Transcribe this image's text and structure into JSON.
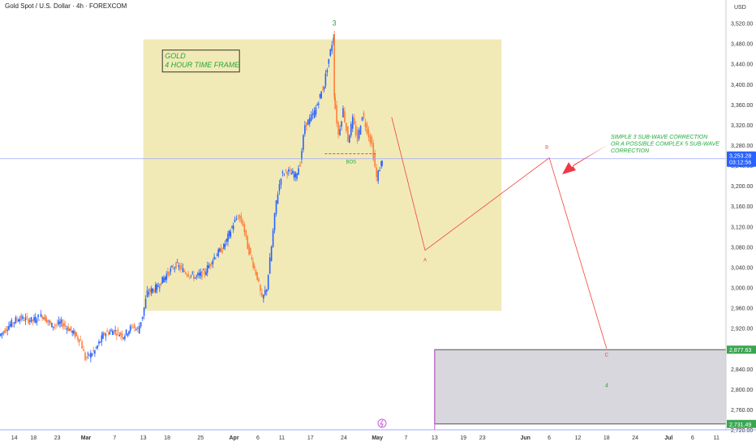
{
  "header": {
    "title": "Gold Spot / U.S. Dollar · 4h · FOREXCOM",
    "currency": "USD"
  },
  "colors": {
    "background": "#ffffff",
    "bull": "#2962ff",
    "bear": "#ff7f3a",
    "zone_fill": "#f1eab7",
    "target_fill": "#d7d7dd",
    "projection": "#f44336",
    "wave_label": "#2ea043",
    "annotation": "#22a83a",
    "arrow": "#f23645",
    "price_tag": "#2962ff",
    "level_tag": "#3aa651",
    "crosshair": "#9fa8ff"
  },
  "chart_data": {
    "type": "candlestick",
    "title": "Gold Spot / U.S. Dollar · 4h · FOREXCOM",
    "xlabel": "",
    "ylabel": "",
    "ylim": [
      2720,
      3540
    ],
    "y_ticks": [
      "3,520.00",
      "3,480.00",
      "3,440.00",
      "3,400.00",
      "3,360.00",
      "3,320.00",
      "3,280.00",
      "3,240.00",
      "3,200.00",
      "3,160.00",
      "3,120.00",
      "3,080.00",
      "3,040.00",
      "3,000.00",
      "2,960.00",
      "2,920.00",
      "2,880.00",
      "2,840.00",
      "2,800.00",
      "2,760.00",
      "2,720.00"
    ],
    "x_ticks": [
      "14",
      "18",
      "23",
      "Mar",
      "7",
      "13",
      "18",
      "25",
      "Apr",
      "6",
      "11",
      "17",
      "24",
      "May",
      "7",
      "13",
      "19",
      "23",
      "Jun",
      "6",
      "12",
      "18",
      "24",
      "Jul",
      "6",
      "11"
    ],
    "x_range": [
      "2025-02-11",
      "2025-07-13"
    ],
    "legend": "none",
    "grid": false,
    "price_path": [
      [
        "2025-02-11",
        2905
      ],
      [
        "2025-02-13",
        2925
      ],
      [
        "2025-02-15",
        2940
      ],
      [
        "2025-02-18",
        2935
      ],
      [
        "2025-02-20",
        2945
      ],
      [
        "2025-02-22",
        2925
      ],
      [
        "2025-02-24",
        2930
      ],
      [
        "2025-02-26",
        2915
      ],
      [
        "2025-02-28",
        2895
      ],
      [
        "2025-03-01",
        2860
      ],
      [
        "2025-03-03",
        2875
      ],
      [
        "2025-03-05",
        2910
      ],
      [
        "2025-03-07",
        2915
      ],
      [
        "2025-03-09",
        2905
      ],
      [
        "2025-03-11",
        2925
      ],
      [
        "2025-03-12",
        2915
      ],
      [
        "2025-03-13",
        2945
      ],
      [
        "2025-03-14",
        2990
      ],
      [
        "2025-03-16",
        3000
      ],
      [
        "2025-03-18",
        3025
      ],
      [
        "2025-03-20",
        3045
      ],
      [
        "2025-03-22",
        3030
      ],
      [
        "2025-03-24",
        3020
      ],
      [
        "2025-03-26",
        3030
      ],
      [
        "2025-03-28",
        3060
      ],
      [
        "2025-03-30",
        3080
      ],
      [
        "2025-04-01",
        3125
      ],
      [
        "2025-04-02",
        3140
      ],
      [
        "2025-04-03",
        3125
      ],
      [
        "2025-04-04",
        3080
      ],
      [
        "2025-04-06",
        3020
      ],
      [
        "2025-04-07",
        2975
      ],
      [
        "2025-04-08",
        3000
      ],
      [
        "2025-04-09",
        3080
      ],
      [
        "2025-04-10",
        3170
      ],
      [
        "2025-04-11",
        3220
      ],
      [
        "2025-04-12",
        3230
      ],
      [
        "2025-04-14",
        3220
      ],
      [
        "2025-04-15",
        3245
      ],
      [
        "2025-04-16",
        3320
      ],
      [
        "2025-04-17",
        3330
      ],
      [
        "2025-04-18",
        3345
      ],
      [
        "2025-04-20",
        3400
      ],
      [
        "2025-04-21",
        3450
      ],
      [
        "2025-04-22",
        3495
      ],
      [
        "2025-04-22",
        3380
      ],
      [
        "2025-04-23",
        3300
      ],
      [
        "2025-04-24",
        3350
      ],
      [
        "2025-04-25",
        3290
      ],
      [
        "2025-04-26",
        3330
      ],
      [
        "2025-04-27",
        3290
      ],
      [
        "2025-04-28",
        3340
      ],
      [
        "2025-04-29",
        3310
      ],
      [
        "2025-04-30",
        3280
      ],
      [
        "2025-05-01",
        3215
      ],
      [
        "2025-05-02",
        3245
      ],
      [
        "2025-05-02",
        3253.28
      ]
    ],
    "zones": [
      {
        "name": "box",
        "x0": "2025-03-13",
        "x1": "2025-05-27",
        "y0": 2954,
        "y1": 3488
      },
      {
        "name": "target",
        "x0": "2025-05-13",
        "x1": "2025-07-13",
        "y0": 2731.49,
        "y1": 2877.63
      }
    ],
    "projection": [
      {
        "label": "",
        "x": "2025-05-04",
        "y": 3335
      },
      {
        "label": "A",
        "x": "2025-05-11",
        "y": 3073
      },
      {
        "label": "B",
        "x": "2025-06-06",
        "y": 3255
      },
      {
        "label": "C",
        "x": "2025-06-18",
        "y": 2880
      },
      {
        "label": "4",
        "x": "2025-06-18",
        "y": 2820
      }
    ],
    "wave_top_label": {
      "text": "3",
      "x": "2025-04-22",
      "y": 3515
    },
    "bos": {
      "text": "BOS",
      "x0": "2025-04-20",
      "x1": "2025-05-01",
      "y": 3263
    },
    "current_price": "3,253.28",
    "countdown": "03:12:56",
    "level_upper": "2,877.63",
    "level_lower": "2,731.49",
    "box_label": [
      "GOLD",
      "4 HOUR TIME FRAME"
    ],
    "annotation": [
      "SIMPLE 3 SUB-WAVE CORRECTION",
      "OR A POSSIBLE COMPLEX 5 SUB-WAVE",
      "CORRECTION"
    ]
  }
}
